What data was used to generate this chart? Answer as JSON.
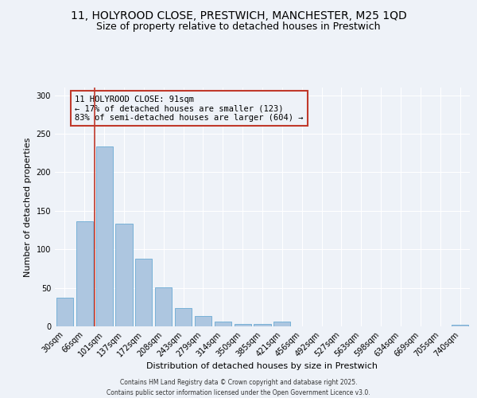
{
  "title_line1": "11, HOLYROOD CLOSE, PRESTWICH, MANCHESTER, M25 1QD",
  "title_line2": "Size of property relative to detached houses in Prestwich",
  "xlabel": "Distribution of detached houses by size in Prestwich",
  "ylabel": "Number of detached properties",
  "categories": [
    "30sqm",
    "66sqm",
    "101sqm",
    "137sqm",
    "172sqm",
    "208sqm",
    "243sqm",
    "279sqm",
    "314sqm",
    "350sqm",
    "385sqm",
    "421sqm",
    "456sqm",
    "492sqm",
    "527sqm",
    "563sqm",
    "598sqm",
    "634sqm",
    "669sqm",
    "705sqm",
    "740sqm"
  ],
  "values": [
    37,
    136,
    234,
    133,
    88,
    51,
    24,
    13,
    6,
    3,
    3,
    6,
    0,
    0,
    0,
    0,
    0,
    0,
    0,
    0,
    2
  ],
  "bar_color": "#adc6e0",
  "bar_edge_color": "#6aaad4",
  "vline_color": "#c0392b",
  "vline_x_index": 2,
  "annotation_text": "11 HOLYROOD CLOSE: 91sqm\n← 17% of detached houses are smaller (123)\n83% of semi-detached houses are larger (604) →",
  "annotation_box_color": "#c0392b",
  "ylim": [
    0,
    310
  ],
  "yticks": [
    0,
    50,
    100,
    150,
    200,
    250,
    300
  ],
  "footer_line1": "Contains HM Land Registry data © Crown copyright and database right 2025.",
  "footer_line2": "Contains public sector information licensed under the Open Government Licence v3.0.",
  "background_color": "#eef2f8",
  "grid_color": "#ffffff",
  "title_fontsize": 10,
  "subtitle_fontsize": 9,
  "ylabel_fontsize": 8,
  "xlabel_fontsize": 8,
  "tick_fontsize": 7,
  "footer_fontsize": 5.5,
  "ann_fontsize": 7.5
}
